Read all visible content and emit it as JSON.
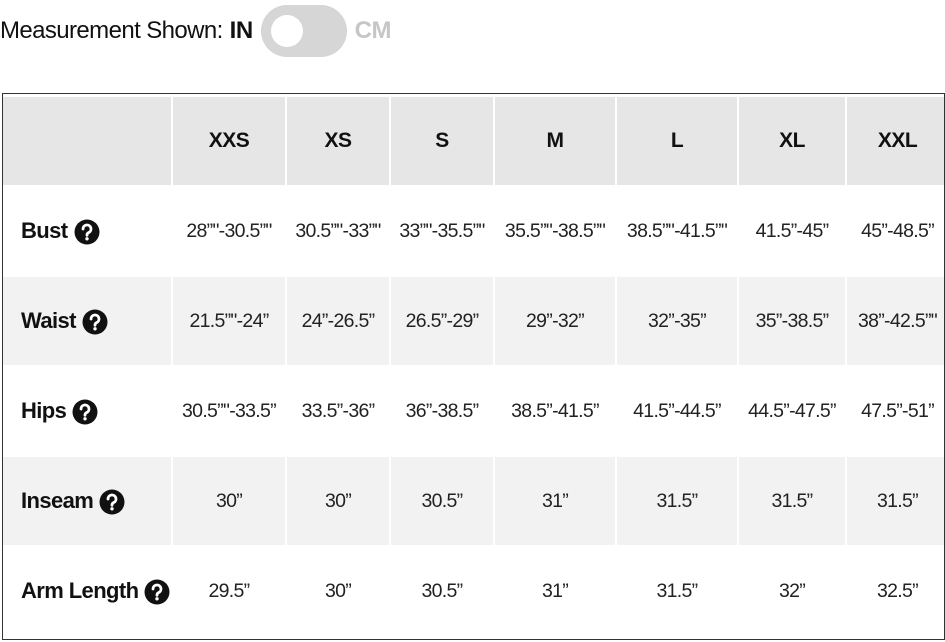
{
  "header": {
    "label": "Measurement Shown:",
    "unit_on": "IN",
    "unit_off": "CM"
  },
  "table": {
    "columns": [
      "XXS",
      "XS",
      "S",
      "M",
      "L",
      "XL",
      "XXL"
    ],
    "rows": [
      {
        "label": "Bust",
        "values": [
          "28”\"-30.5”\"",
          "30.5”\"-33”\"",
          "33”\"-35.5”\"",
          "35.5”\"-38.5”\"",
          "38.5”\"-41.5”\"",
          "41.5”-45”",
          "45”-48.5”"
        ]
      },
      {
        "label": "Waist",
        "values": [
          "21.5”\"-24”",
          "24”-26.5”",
          "26.5”-29”",
          "29”-32”",
          "32”-35”",
          "35”-38.5”",
          "38”-42.5”\""
        ]
      },
      {
        "label": "Hips",
        "values": [
          "30.5”\"-33.5”",
          "33.5”-36”",
          "36”-38.5”",
          "38.5”-41.5”",
          "41.5”-44.5”",
          "44.5”-47.5”",
          "47.5”-51”"
        ]
      },
      {
        "label": "Inseam",
        "values": [
          "30”",
          "30”",
          "30.5”",
          "31”",
          "31.5”",
          "31.5”",
          "31.5”"
        ]
      },
      {
        "label": "Arm Length",
        "values": [
          "29.5”",
          "30”",
          "30.5”",
          "31”",
          "31.5”",
          "32”",
          "32.5”"
        ]
      }
    ]
  }
}
